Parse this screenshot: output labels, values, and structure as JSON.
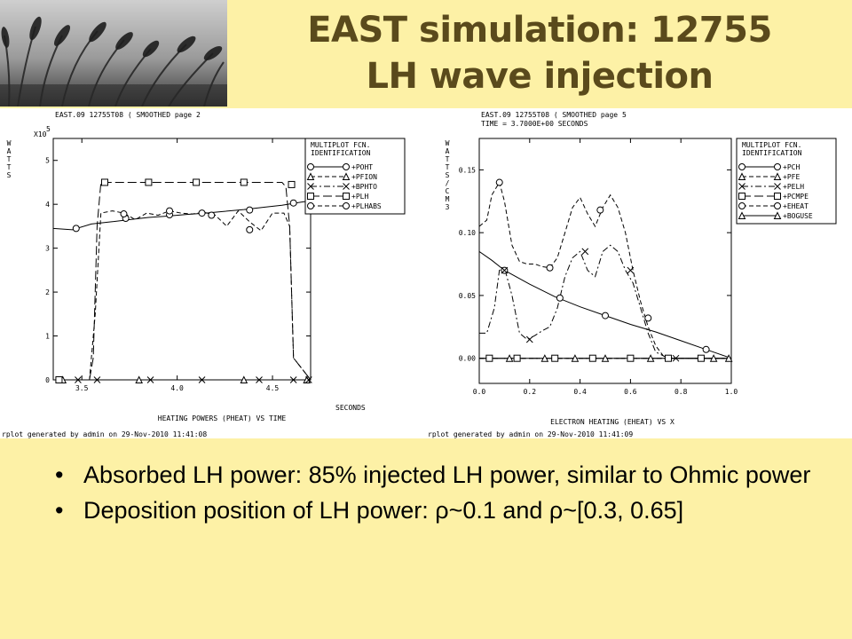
{
  "colors": {
    "background": "#FDF1A6",
    "title": "#5a4a1c",
    "plot_bg": "#FFFFFF",
    "ink": "#000000"
  },
  "title": {
    "line1": "EAST simulation: 12755",
    "line2": "LH wave injection"
  },
  "bullets": [
    {
      "marker": "•",
      "text": "Absorbed LH power: 85% injected LH power, similar to Ohmic power"
    },
    {
      "marker": "•",
      "text": "Deposition position of LH power: ρ~0.1 and ρ~[0.3, 0.65]"
    }
  ],
  "chart_data": [
    {
      "type": "line",
      "header": "EAST.09 12755T08 ( SMOOTHED page 2",
      "multiplier": "X10",
      "multiplier_exp": "5",
      "ylabel": "WATTS",
      "xlabel": "SECONDS",
      "caption": "HEATING POWERS (PHEAT) VS TIME",
      "footer": "rplot generated by admin on 29-Nov-2010 11:41:08",
      "legend_title": [
        "MULTIPLOT FCN.",
        "IDENTIFICATION"
      ],
      "xlim": [
        3.35,
        4.7
      ],
      "ylim": [
        0,
        5.5
      ],
      "x_ticks": [
        "3.5",
        "4.0",
        "4.5"
      ],
      "x_tick_values": [
        3.5,
        4.0,
        4.5
      ],
      "y_ticks": [
        "0",
        "1",
        "2",
        "3",
        "4",
        "5"
      ],
      "y_tick_values": [
        0,
        1,
        2,
        3,
        4,
        5
      ],
      "series": [
        {
          "name": "+POHT",
          "style": "solid",
          "marker": "circle",
          "x": [
            3.35,
            3.45,
            3.55,
            3.65,
            3.75,
            3.85,
            3.95,
            4.05,
            4.15,
            4.25,
            4.35,
            4.45,
            4.55,
            4.65,
            4.7
          ],
          "y": [
            3.45,
            3.42,
            3.55,
            3.6,
            3.65,
            3.7,
            3.73,
            3.77,
            3.8,
            3.84,
            3.88,
            3.93,
            3.98,
            4.05,
            4.08
          ],
          "marker_x": [
            3.47,
            3.73,
            3.96,
            4.13,
            4.38,
            4.61
          ],
          "marker_y": [
            3.45,
            3.68,
            3.76,
            3.8,
            3.87,
            4.03
          ]
        },
        {
          "name": "+PFION",
          "style": "dash",
          "marker": "triangle",
          "x": [
            3.35,
            4.7
          ],
          "y": [
            0,
            0
          ],
          "marker_x": [
            3.4,
            3.8,
            4.35,
            4.68
          ],
          "marker_y": [
            0,
            0,
            0,
            0
          ]
        },
        {
          "name": "+BPHTO",
          "style": "dashdot",
          "marker": "x",
          "x": [
            3.35,
            4.7
          ],
          "y": [
            0,
            0
          ],
          "marker_x": [
            3.48,
            3.58,
            3.86,
            4.13,
            4.43,
            4.61,
            4.69
          ],
          "marker_y": [
            0,
            0,
            0,
            0,
            0,
            0,
            0
          ]
        },
        {
          "name": "+PLH",
          "style": "longdash",
          "marker": "square",
          "x": [
            3.35,
            3.54,
            3.56,
            3.58,
            3.6,
            4.55,
            4.57,
            4.59,
            4.61,
            4.7
          ],
          "y": [
            0,
            0,
            0.5,
            3.5,
            4.5,
            4.5,
            4.4,
            3.5,
            0.5,
            0
          ],
          "marker_x": [
            3.38,
            3.62,
            3.85,
            4.1,
            4.35,
            4.6
          ],
          "marker_y": [
            0,
            4.5,
            4.5,
            4.5,
            4.5,
            4.45
          ]
        },
        {
          "name": "+PLHABS",
          "style": "dash",
          "marker": "circle",
          "x": [
            3.35,
            3.54,
            3.57,
            3.6,
            3.66,
            3.72,
            3.78,
            3.84,
            3.9,
            3.96,
            4.02,
            4.08,
            4.14,
            4.2,
            4.26,
            4.32,
            4.38,
            4.44,
            4.5,
            4.56,
            4.59,
            4.61,
            4.7
          ],
          "y": [
            0,
            0,
            1.5,
            3.8,
            3.85,
            3.8,
            3.65,
            3.8,
            3.75,
            3.85,
            3.8,
            3.78,
            3.82,
            3.75,
            3.5,
            3.85,
            3.6,
            3.4,
            3.8,
            3.8,
            3.5,
            0.5,
            0
          ],
          "marker_x": [
            3.72,
            3.96,
            4.18,
            4.38
          ],
          "marker_y": [
            3.78,
            3.85,
            3.75,
            3.42
          ]
        }
      ]
    },
    {
      "type": "line",
      "header": "EAST.09 12755T08 ( SMOOTHED page 5",
      "subheader": "TIME = 3.7000E+00 SECONDS",
      "ylabel": "WATTS/CM3",
      "xlabel": "",
      "caption": "ELECTRON HEATING (EHEAT) VS X",
      "footer": "rplot generated by admin on 29-Nov-2010 11:41:09",
      "legend_title": [
        "MULTIPLOT FCN.",
        "IDENTIFICATION"
      ],
      "xlim": [
        0,
        1.0
      ],
      "ylim": [
        -0.02,
        0.175
      ],
      "x_ticks": [
        "0.0",
        "0.2",
        "0.4",
        "0.6",
        "0.8",
        "1.0"
      ],
      "x_tick_values": [
        0,
        0.2,
        0.4,
        0.6,
        0.8,
        1.0
      ],
      "y_ticks": [
        "0.00",
        "0.05",
        "0.10",
        "0.15"
      ],
      "y_tick_values": [
        0,
        0.05,
        0.1,
        0.15
      ],
      "series": [
        {
          "name": "+PCH",
          "style": "solid",
          "marker": "circle",
          "x": [
            0,
            0.05,
            0.1,
            0.2,
            0.3,
            0.4,
            0.5,
            0.6,
            0.7,
            0.8,
            0.9,
            1.0
          ],
          "y": [
            0.085,
            0.078,
            0.07,
            0.059,
            0.049,
            0.041,
            0.034,
            0.027,
            0.021,
            0.014,
            0.007,
            0.0
          ],
          "marker_x": [
            0.1,
            0.32,
            0.5,
            0.9
          ],
          "marker_y": [
            0.07,
            0.048,
            0.034,
            0.007
          ]
        },
        {
          "name": "+PFE",
          "style": "dash",
          "marker": "triangle",
          "x": [
            0,
            1.0
          ],
          "y": [
            0,
            0
          ],
          "marker_x": [
            0.12,
            0.26,
            0.38,
            0.5,
            0.68
          ],
          "marker_y": [
            0,
            0,
            0,
            0,
            0
          ]
        },
        {
          "name": "+PELH",
          "style": "dashdot",
          "marker": "x",
          "x": [
            0,
            0.03,
            0.06,
            0.08,
            0.1,
            0.13,
            0.16,
            0.19,
            0.22,
            0.25,
            0.28,
            0.31,
            0.34,
            0.37,
            0.4,
            0.43,
            0.46,
            0.49,
            0.52,
            0.55,
            0.58,
            0.61,
            0.64,
            0.67,
            0.7,
            0.75,
            1.0
          ],
          "y": [
            0.02,
            0.02,
            0.04,
            0.07,
            0.072,
            0.05,
            0.02,
            0.015,
            0.018,
            0.022,
            0.025,
            0.04,
            0.065,
            0.08,
            0.085,
            0.07,
            0.065,
            0.085,
            0.09,
            0.085,
            0.07,
            0.06,
            0.04,
            0.02,
            0.005,
            0.0,
            0.0
          ],
          "marker_x": [
            0.1,
            0.2,
            0.42,
            0.6,
            0.78
          ],
          "marker_y": [
            0.07,
            0.015,
            0.085,
            0.07,
            0.0
          ]
        },
        {
          "name": "+PCMPE",
          "style": "longdash",
          "marker": "square",
          "x": [
            0,
            1.0
          ],
          "y": [
            0,
            0
          ],
          "marker_x": [
            0.04,
            0.15,
            0.3,
            0.45,
            0.6,
            0.75,
            0.88
          ],
          "marker_y": [
            0,
            0,
            0,
            0,
            0,
            0,
            0
          ]
        },
        {
          "name": "+EHEAT",
          "style": "dash",
          "marker": "circle",
          "x": [
            0,
            0.03,
            0.05,
            0.08,
            0.1,
            0.13,
            0.16,
            0.19,
            0.22,
            0.25,
            0.28,
            0.31,
            0.34,
            0.37,
            0.4,
            0.43,
            0.46,
            0.49,
            0.52,
            0.55,
            0.58,
            0.61,
            0.64,
            0.67,
            0.7,
            0.73,
            0.76,
            1.0
          ],
          "y": [
            0.105,
            0.11,
            0.13,
            0.14,
            0.125,
            0.09,
            0.077,
            0.075,
            0.075,
            0.073,
            0.072,
            0.08,
            0.1,
            0.12,
            0.128,
            0.115,
            0.105,
            0.12,
            0.13,
            0.12,
            0.1,
            0.07,
            0.045,
            0.025,
            0.01,
            0.002,
            0.0,
            0.0
          ],
          "marker_x": [
            0.08,
            0.28,
            0.48,
            0.67
          ],
          "marker_y": [
            0.14,
            0.072,
            0.118,
            0.032
          ]
        },
        {
          "name": "+BOGUSE",
          "style": "solid",
          "marker": "triangle",
          "x": [
            0,
            1.0
          ],
          "y": [
            0,
            0
          ],
          "marker_x": [
            0.93,
            0.99
          ],
          "marker_y": [
            0,
            0
          ]
        }
      ]
    }
  ]
}
